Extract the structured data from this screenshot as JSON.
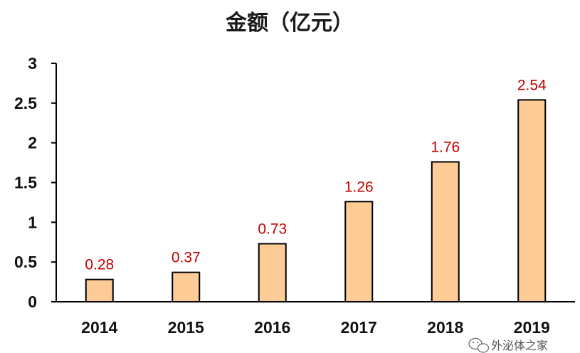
{
  "chart_data": {
    "type": "bar",
    "title": "金额（亿元）",
    "categories": [
      "2014",
      "2015",
      "2016",
      "2017",
      "2018",
      "2019"
    ],
    "values": [
      0.28,
      0.37,
      0.73,
      1.26,
      1.76,
      2.54
    ],
    "data_labels": [
      "0.28",
      "0.37",
      "0.73",
      "1.26",
      "1.76",
      "2.54"
    ],
    "xlabel": "",
    "ylabel": "",
    "ylim": [
      0,
      3
    ],
    "yticks": [
      "0",
      "0.5",
      "1",
      "1.5",
      "2",
      "2.5",
      "3"
    ],
    "grid": false,
    "legend": "none",
    "colors": {
      "bar_fill": "#FCCB96",
      "bar_stroke": "#000000",
      "data_label": "#C00000",
      "axis": "#000000"
    }
  },
  "watermark": {
    "text": "外泌体之家",
    "icon": "wechat-icon"
  }
}
